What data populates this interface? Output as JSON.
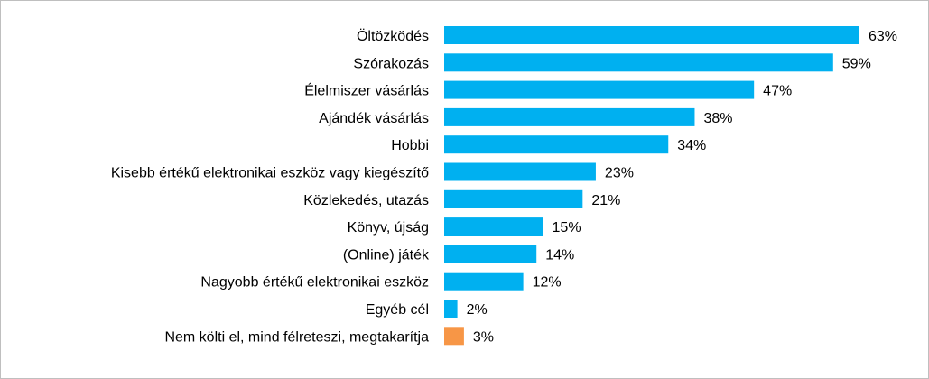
{
  "chart_data": {
    "type": "bar",
    "orientation": "horizontal",
    "categories": [
      "Öltözködés",
      "Szórakozás",
      "Élelmiszer vásárlás",
      "Ajándék vásárlás",
      "Hobbi",
      "Kisebb értékű elektronikai eszköz vagy kiegészítő",
      "Közlekedés, utazás",
      "Könyv, újság",
      "(Online) játék",
      "Nagyobb értékű elektronikai eszköz",
      "Egyéb cél",
      "Nem költi el, mind félreteszi, megtakarítja"
    ],
    "values": [
      63,
      59,
      47,
      38,
      34,
      23,
      21,
      15,
      14,
      12,
      2,
      3
    ],
    "value_labels": [
      "63%",
      "59%",
      "47%",
      "38%",
      "34%",
      "23%",
      "21%",
      "15%",
      "14%",
      "12%",
      "2%",
      "3%"
    ],
    "bar_colors": [
      "#00b0f0",
      "#00b0f0",
      "#00b0f0",
      "#00b0f0",
      "#00b0f0",
      "#00b0f0",
      "#00b0f0",
      "#00b0f0",
      "#00b0f0",
      "#00b0f0",
      "#00b0f0",
      "#f79646"
    ],
    "xlim": [
      0,
      63
    ],
    "grid": false,
    "legend": false
  }
}
